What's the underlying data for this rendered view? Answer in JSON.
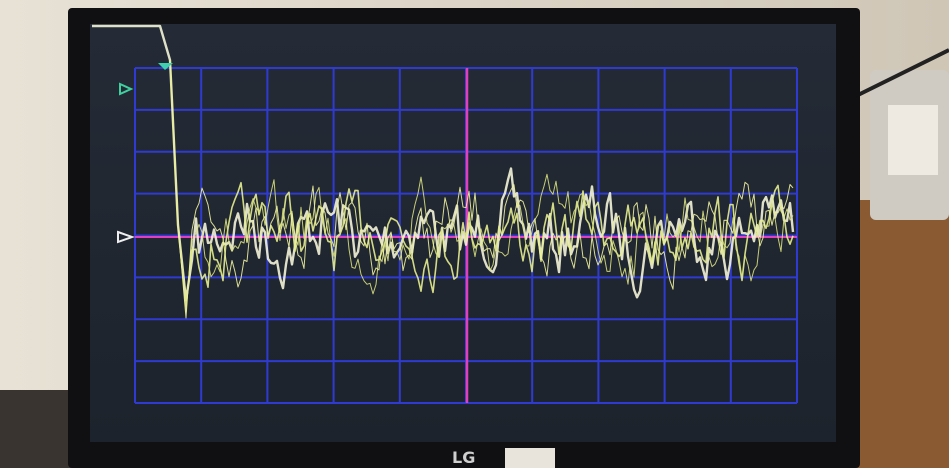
{
  "monitor": {
    "brand_logo": "LG"
  }
}
